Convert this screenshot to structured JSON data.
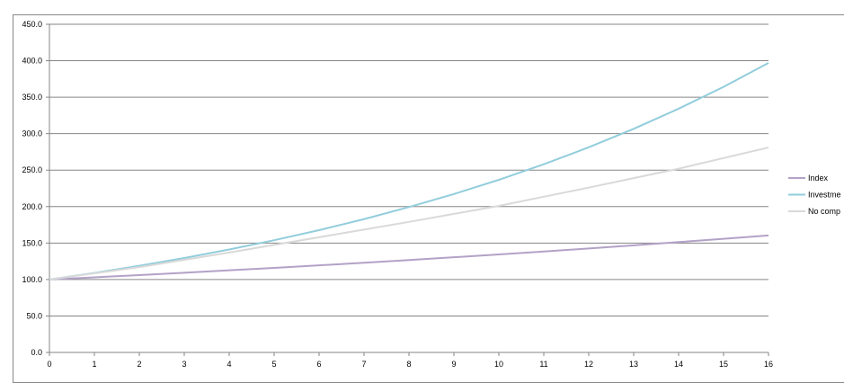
{
  "chart_data": {
    "type": "line",
    "title": "",
    "xlabel": "",
    "ylabel": "",
    "x": [
      0,
      1,
      2,
      3,
      4,
      5,
      6,
      7,
      8,
      9,
      10,
      11,
      12,
      13,
      14,
      15,
      16
    ],
    "xlim": [
      0,
      16
    ],
    "ylim": [
      0,
      450
    ],
    "y_ticks": [
      "0.0",
      "50.0",
      "100.0",
      "150.0",
      "200.0",
      "250.0",
      "300.0",
      "350.0",
      "400.0",
      "450.0"
    ],
    "y_tick_values": [
      0,
      50,
      100,
      150,
      200,
      250,
      300,
      350,
      400,
      450
    ],
    "grid": true,
    "legend_position": "right",
    "series": [
      {
        "name": "Index",
        "color": "#b3a2c7",
        "values": [
          100,
          103,
          106.1,
          109.3,
          112.6,
          115.9,
          119.4,
          123,
          126.7,
          130.5,
          134.4,
          138.4,
          142.6,
          146.9,
          151.3,
          155.8,
          160.5
        ]
      },
      {
        "name": "Investme",
        "color": "#92cddc",
        "values": [
          100,
          109,
          118.8,
          129.5,
          141.2,
          153.9,
          167.7,
          182.8,
          199.3,
          217.2,
          236.7,
          258,
          281.3,
          306.6,
          334.2,
          364.2,
          397
        ]
      },
      {
        "name": "No comp",
        "color": "#d9d9d9",
        "values": [
          100,
          108.5,
          117,
          127,
          137,
          147.5,
          158,
          168.5,
          179,
          190,
          201,
          213.5,
          226,
          239,
          252,
          266.5,
          281
        ]
      }
    ]
  }
}
